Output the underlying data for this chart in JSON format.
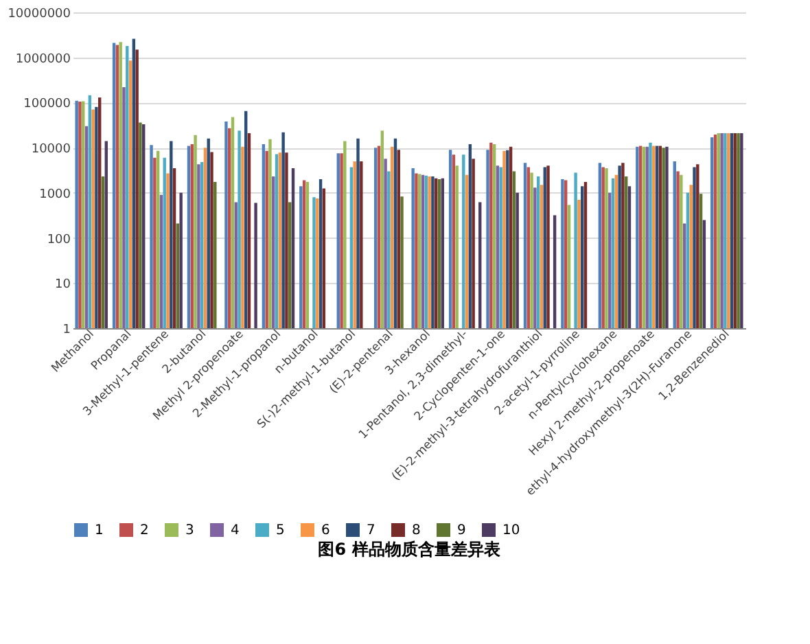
{
  "chart_data": {
    "type": "bar",
    "title": "图6    样品物质含量差异表",
    "log": true,
    "grid": "y",
    "legend": "bottom",
    "categories": [
      "Methanol",
      "Propanal",
      "3-Methyl-1-pentene",
      "2-butanol",
      "Methyl 2-propenoate",
      "2-Methyl-1-propanol",
      "n-butanol",
      "S(-)2-methyl-1-butanol",
      "(E)-2-pentenal",
      "3-hexanol",
      "1-Pentanol, 2,3-dimethyl-",
      "2-Cyclopenten-1-one",
      "(E)-2-methyl-3-tetrahydrofuranthiol",
      "2-acetyl-1-pyrroline",
      "n-Pentylcyclohexane",
      "Hexyl 2-methyl-2-propenoate",
      "ethyl-4-hydroxymethyl-3(2H)-Furanone",
      "1,2-Benzenediol"
    ],
    "ylim": [
      1,
      10000000
    ],
    "yticks": [
      1,
      10,
      100,
      1000,
      10000,
      100000,
      1000000,
      10000000
    ],
    "series": [
      {
        "name": "1",
        "color": "#4f81bd",
        "values": [
          110000,
          2100000,
          11500,
          11000,
          38000,
          12000,
          1400,
          7500,
          10000,
          3500,
          9000,
          9000,
          4600,
          2000,
          4600,
          10500,
          5000,
          17000
        ]
      },
      {
        "name": "2",
        "color": "#c0504d",
        "values": [
          105000,
          1900000,
          6000,
          12000,
          27000,
          8500,
          1900,
          7500,
          11000,
          2700,
          7000,
          13000,
          3700,
          1900,
          3700,
          11000,
          3000,
          19500
        ]
      },
      {
        "name": "3",
        "color": "#9bbb59",
        "values": [
          107000,
          2200000,
          8500,
          19000,
          48000,
          15500,
          1750,
          14000,
          24000,
          2600,
          4000,
          12000,
          2800,
          540,
          3500,
          10500,
          2500,
          21000
        ]
      },
      {
        "name": "4",
        "color": "#8064a2",
        "values": [
          30000,
          220000,
          900,
          4300,
          620,
          2300,
          null,
          null,
          5700,
          2500,
          null,
          4000,
          1300,
          null,
          1000,
          10500,
          210,
          21000
        ]
      },
      {
        "name": "5",
        "color": "#4bacc6",
        "values": [
          145000,
          1800000,
          6000,
          4800,
          24000,
          7200,
          800,
          3700,
          3000,
          2400,
          7000,
          3700,
          2300,
          2800,
          2100,
          13000,
          1000,
          21000
        ]
      },
      {
        "name": "6",
        "color": "#f79646",
        "values": [
          70000,
          850000,
          2700,
          10000,
          10500,
          7800,
          750,
          5000,
          10500,
          2300,
          2500,
          8500,
          1500,
          700,
          2500,
          11000,
          1500,
          21000
        ]
      },
      {
        "name": "7",
        "color": "#2c4d75",
        "values": [
          80000,
          2600000,
          14000,
          16000,
          65000,
          22000,
          2000,
          16000,
          16000,
          2300,
          12000,
          8800,
          3700,
          1400,
          4000,
          11000,
          3700,
          21000
        ]
      },
      {
        "name": "8",
        "color": "#772c2a",
        "values": [
          130000,
          1500000,
          3500,
          8000,
          21000,
          7800,
          1250,
          5000,
          9000,
          2100,
          5700,
          10500,
          4000,
          1750,
          4600,
          11000,
          4300,
          21000
        ]
      },
      {
        "name": "9",
        "color": "#5f7530",
        "values": [
          2300,
          36000,
          210,
          1750,
          null,
          620,
          null,
          null,
          830,
          2000,
          null,
          3000,
          null,
          null,
          2300,
          10000,
          950,
          21000
        ]
      },
      {
        "name": "10",
        "color": "#4d3b62",
        "values": [
          14000,
          33000,
          1000,
          null,
          600,
          3500,
          null,
          null,
          null,
          2100,
          620,
          1000,
          320,
          null,
          1400,
          10500,
          250,
          21000
        ]
      }
    ]
  }
}
